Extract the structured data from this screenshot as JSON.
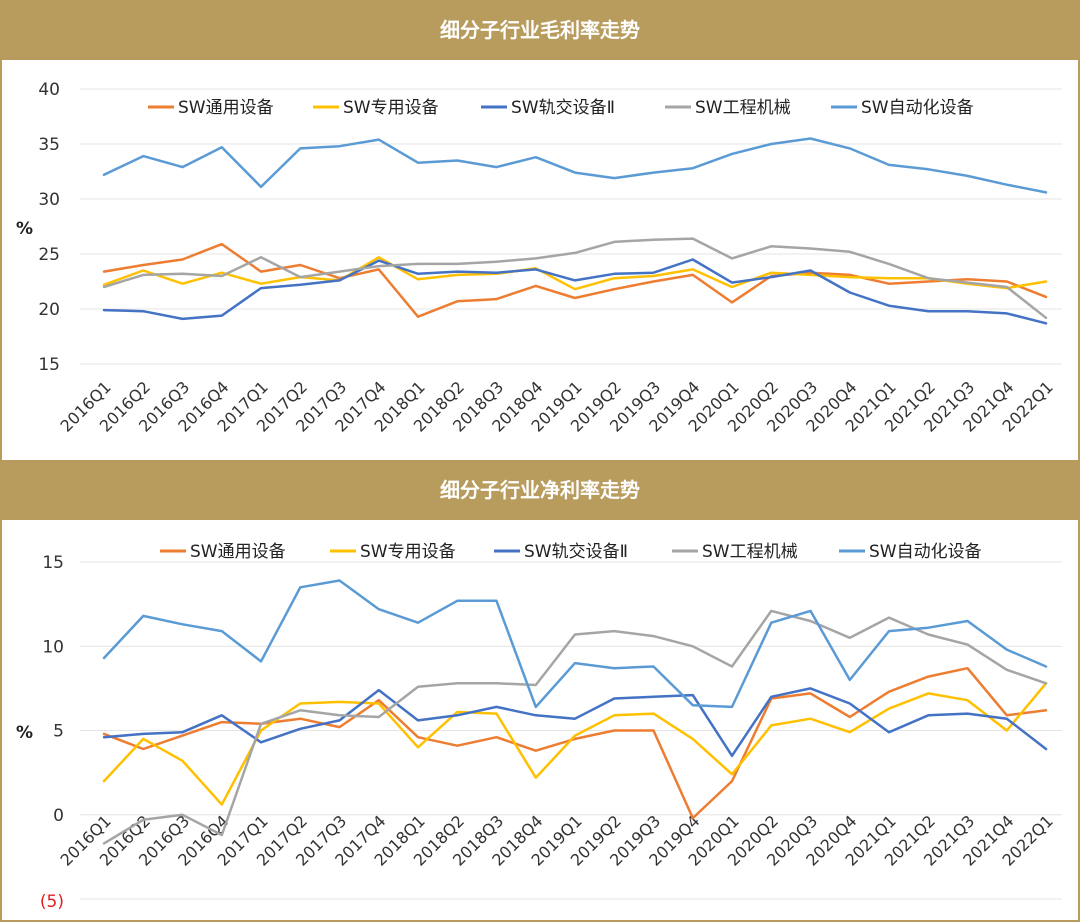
{
  "chart_data": [
    {
      "type": "line",
      "title": "细分子行业毛利率走势",
      "ylabel": "%",
      "ylim": [
        15,
        40
      ],
      "yticks": [
        "15",
        "20",
        "25",
        "30",
        "35",
        "40"
      ],
      "grid": true,
      "legend_position": "top",
      "categories": [
        "2016Q1",
        "2016Q2",
        "2016Q3",
        "2016Q4",
        "2017Q1",
        "2017Q2",
        "2017Q3",
        "2017Q4",
        "2018Q1",
        "2018Q2",
        "2018Q3",
        "2018Q4",
        "2019Q1",
        "2019Q2",
        "2019Q3",
        "2019Q4",
        "2020Q1",
        "2020Q2",
        "2020Q3",
        "2020Q4",
        "2021Q1",
        "2021Q2",
        "2021Q3",
        "2021Q4",
        "2022Q1"
      ],
      "series": [
        {
          "name": "SW通用设备",
          "color": "#ED7D31",
          "values": [
            23.4,
            24.0,
            24.5,
            25.9,
            23.4,
            24.0,
            22.8,
            23.6,
            19.3,
            20.7,
            20.9,
            22.1,
            21.0,
            21.8,
            22.5,
            23.1,
            20.6,
            23.0,
            23.3,
            23.1,
            22.3,
            22.5,
            22.7,
            22.5,
            21.1
          ]
        },
        {
          "name": "SW专用设备",
          "color": "#FFC000",
          "values": [
            22.2,
            23.5,
            22.3,
            23.3,
            22.3,
            22.9,
            22.6,
            24.7,
            22.7,
            23.1,
            23.2,
            23.7,
            21.8,
            22.8,
            23.0,
            23.6,
            22.0,
            23.3,
            23.1,
            22.9,
            22.8,
            22.8,
            22.3,
            21.9,
            22.5
          ]
        },
        {
          "name": "SW轨交设备Ⅱ",
          "color": "#4472C4",
          "values": [
            19.9,
            19.8,
            19.1,
            19.4,
            21.9,
            22.2,
            22.6,
            24.4,
            23.2,
            23.4,
            23.3,
            23.6,
            22.6,
            23.2,
            23.3,
            24.5,
            22.4,
            22.9,
            23.5,
            21.5,
            20.3,
            19.8,
            19.8,
            19.6,
            18.7
          ]
        },
        {
          "name": "SW工程机械",
          "color": "#A5A5A5",
          "values": [
            22.0,
            23.1,
            23.2,
            23.0,
            24.7,
            22.9,
            23.4,
            23.9,
            24.1,
            24.1,
            24.3,
            24.6,
            25.1,
            26.1,
            26.3,
            26.4,
            24.6,
            25.7,
            25.5,
            25.2,
            24.1,
            22.8,
            22.4,
            22.0,
            19.2
          ]
        },
        {
          "name": "SW自动化设备",
          "color": "#5B9BD5",
          "values": [
            32.2,
            33.9,
            32.9,
            34.7,
            31.1,
            34.6,
            34.8,
            35.4,
            33.3,
            33.5,
            32.9,
            33.8,
            32.4,
            31.9,
            32.4,
            32.8,
            34.1,
            35.0,
            35.5,
            34.6,
            33.1,
            32.7,
            32.1,
            31.3,
            30.6
          ]
        }
      ]
    },
    {
      "type": "line",
      "title": "细分子行业净利率走势",
      "ylabel": "%",
      "ylim": [
        -5,
        15
      ],
      "yticks": [
        "(5)",
        "0",
        "5",
        "10",
        "15"
      ],
      "grid": true,
      "legend_position": "top",
      "categories": [
        "2016Q1",
        "2016Q2",
        "2016Q3",
        "2016Q4",
        "2017Q1",
        "2017Q2",
        "2017Q3",
        "2017Q4",
        "2018Q1",
        "2018Q2",
        "2018Q3",
        "2018Q4",
        "2019Q1",
        "2019Q2",
        "2019Q3",
        "2019Q4",
        "2020Q1",
        "2020Q2",
        "2020Q3",
        "2020Q4",
        "2021Q1",
        "2021Q2",
        "2021Q3",
        "2021Q4",
        "2022Q1"
      ],
      "series": [
        {
          "name": "SW通用设备",
          "color": "#ED7D31",
          "values": [
            4.8,
            3.9,
            4.7,
            5.5,
            5.4,
            5.7,
            5.2,
            6.8,
            4.6,
            4.1,
            4.6,
            3.8,
            4.5,
            5.0,
            5.0,
            -0.2,
            2.0,
            6.9,
            7.2,
            5.8,
            7.3,
            8.2,
            8.7,
            5.9,
            6.2
          ]
        },
        {
          "name": "SW专用设备",
          "color": "#FFC000",
          "values": [
            2.0,
            4.5,
            3.2,
            0.6,
            5.0,
            6.6,
            6.7,
            6.6,
            4.0,
            6.1,
            6.0,
            2.2,
            4.7,
            5.9,
            6.0,
            4.5,
            2.4,
            5.3,
            5.7,
            4.9,
            6.3,
            7.2,
            6.8,
            5.0,
            7.8
          ]
        },
        {
          "name": "SW轨交设备Ⅱ",
          "color": "#4472C4",
          "values": [
            4.6,
            4.8,
            4.9,
            5.9,
            4.3,
            5.1,
            5.6,
            7.4,
            5.6,
            5.9,
            6.4,
            5.9,
            5.7,
            6.9,
            7.0,
            7.1,
            3.5,
            7.0,
            7.5,
            6.6,
            4.9,
            5.9,
            6.0,
            5.7,
            3.9
          ]
        },
        {
          "name": "SW工程机械",
          "color": "#A5A5A5",
          "values": [
            -1.7,
            -0.3,
            0.0,
            -1.2,
            5.4,
            6.2,
            5.9,
            5.8,
            7.6,
            7.8,
            7.8,
            7.7,
            10.7,
            10.9,
            10.6,
            10.0,
            8.8,
            12.1,
            11.5,
            10.5,
            11.7,
            10.7,
            10.1,
            8.6,
            7.8
          ]
        },
        {
          "name": "SW自动化设备",
          "color": "#5B9BD5",
          "values": [
            9.3,
            11.8,
            11.3,
            10.9,
            9.1,
            13.5,
            13.9,
            12.2,
            11.4,
            12.7,
            12.7,
            6.4,
            9.0,
            8.7,
            8.8,
            6.5,
            6.4,
            11.4,
            12.1,
            8.0,
            10.9,
            11.1,
            11.5,
            9.8,
            8.8
          ]
        }
      ]
    }
  ]
}
